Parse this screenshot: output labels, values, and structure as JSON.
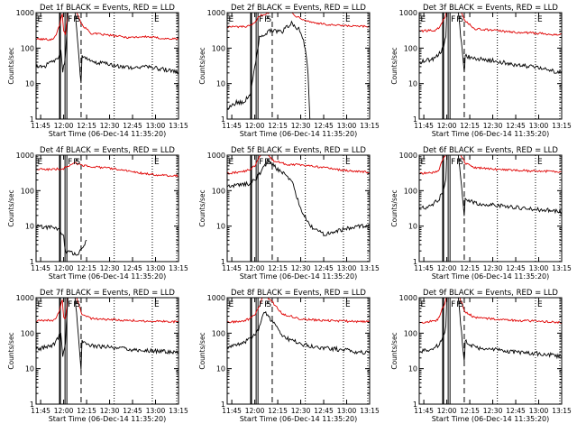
{
  "figure": {
    "ylabel": "Counts/sec",
    "xlabel": "Start Time (06-Dec-14 11:35:20)",
    "xticks": [
      "11:45",
      "12:00",
      "12:15",
      "12:30",
      "12:45",
      "13:00",
      "13:15"
    ],
    "yticks": [
      "1",
      "10",
      "100",
      "1000"
    ],
    "marker_labels": [
      "E",
      "F",
      "P",
      "S"
    ],
    "colors": {
      "events": "#000000",
      "lld": "#e00000",
      "axes": "#000000"
    }
  },
  "chart_data": [
    {
      "type": "line",
      "title": "Det 1f BLACK = Events, RED = LLD",
      "xlim": [
        11.7,
        13.25
      ],
      "ylim": [
        1,
        1000
      ],
      "yscale": "log",
      "lld": [
        [
          11.7,
          180
        ],
        [
          11.88,
          175
        ],
        [
          11.92,
          250
        ],
        [
          11.955,
          420
        ],
        [
          11.97,
          700
        ],
        [
          11.985,
          900
        ],
        [
          12.0,
          300
        ],
        [
          12.02,
          250
        ],
        [
          12.05,
          1300
        ],
        [
          12.12,
          1400
        ],
        [
          12.2,
          450
        ],
        [
          12.3,
          260
        ],
        [
          12.5,
          230
        ],
        [
          12.7,
          200
        ],
        [
          12.9,
          210
        ],
        [
          13.1,
          185
        ],
        [
          13.25,
          180
        ]
      ],
      "events": [
        [
          11.7,
          30
        ],
        [
          11.8,
          32
        ],
        [
          11.88,
          40
        ],
        [
          11.92,
          50
        ],
        [
          11.95,
          60
        ],
        [
          11.97,
          90
        ],
        [
          11.99,
          20
        ],
        [
          12.02,
          60
        ],
        [
          12.05,
          1300
        ],
        [
          12.12,
          1400
        ],
        [
          12.19,
          10
        ],
        [
          12.2,
          60
        ],
        [
          12.3,
          40
        ],
        [
          12.5,
          35
        ],
        [
          12.7,
          28
        ],
        [
          12.9,
          30
        ],
        [
          13.1,
          25
        ],
        [
          13.25,
          20
        ]
      ]
    },
    {
      "type": "line",
      "title": "Det 2f BLACK = Events, RED = LLD",
      "xlim": [
        11.7,
        13.25
      ],
      "ylim": [
        1,
        1000
      ],
      "yscale": "log",
      "lld": [
        [
          11.7,
          400
        ],
        [
          11.9,
          400
        ],
        [
          11.95,
          420
        ],
        [
          12.0,
          500
        ],
        [
          12.05,
          800
        ],
        [
          12.15,
          1000
        ],
        [
          12.25,
          1200
        ],
        [
          12.35,
          1300
        ],
        [
          12.45,
          800
        ],
        [
          12.6,
          550
        ],
        [
          12.8,
          450
        ],
        [
          13.0,
          420
        ],
        [
          13.25,
          400
        ]
      ],
      "events": [
        [
          11.7,
          2
        ],
        [
          11.8,
          3
        ],
        [
          11.88,
          3
        ],
        [
          11.95,
          5
        ],
        [
          12.0,
          30
        ],
        [
          12.05,
          200
        ],
        [
          12.15,
          300
        ],
        [
          12.3,
          300
        ],
        [
          12.4,
          500
        ],
        [
          12.45,
          400
        ],
        [
          12.5,
          300
        ],
        [
          12.55,
          100
        ],
        [
          12.58,
          20
        ],
        [
          12.6,
          1
        ]
      ]
    },
    {
      "type": "line",
      "title": "Det 3f BLACK = Events, RED = LLD",
      "xlim": [
        11.7,
        13.25
      ],
      "ylim": [
        1,
        1000
      ],
      "yscale": "log",
      "lld": [
        [
          11.7,
          300
        ],
        [
          11.88,
          320
        ],
        [
          11.92,
          380
        ],
        [
          11.95,
          550
        ],
        [
          11.98,
          700
        ],
        [
          12.0,
          1300
        ],
        [
          12.12,
          1500
        ],
        [
          12.2,
          600
        ],
        [
          12.3,
          350
        ],
        [
          12.5,
          320
        ],
        [
          12.7,
          280
        ],
        [
          12.9,
          270
        ],
        [
          13.1,
          250
        ],
        [
          13.25,
          240
        ]
      ],
      "events": [
        [
          11.7,
          40
        ],
        [
          11.85,
          50
        ],
        [
          11.92,
          70
        ],
        [
          11.96,
          100
        ],
        [
          11.99,
          200
        ],
        [
          12.0,
          1300
        ],
        [
          12.12,
          1500
        ],
        [
          12.19,
          20
        ],
        [
          12.2,
          60
        ],
        [
          12.3,
          50
        ],
        [
          12.5,
          45
        ],
        [
          12.7,
          35
        ],
        [
          12.9,
          30
        ],
        [
          13.1,
          25
        ],
        [
          13.25,
          20
        ]
      ]
    },
    {
      "type": "line",
      "title": "Det 4f BLACK = Events, RED = LLD",
      "xlim": [
        11.7,
        13.25
      ],
      "ylim": [
        1,
        1000
      ],
      "yscale": "log",
      "lld": [
        [
          11.7,
          400
        ],
        [
          11.9,
          400
        ],
        [
          12.0,
          420
        ],
        [
          12.05,
          500
        ],
        [
          12.12,
          600
        ],
        [
          12.2,
          520
        ],
        [
          12.4,
          450
        ],
        [
          12.6,
          400
        ],
        [
          12.8,
          320
        ],
        [
          13.0,
          280
        ],
        [
          13.25,
          260
        ]
      ],
      "events": [
        [
          11.7,
          10
        ],
        [
          11.8,
          9
        ],
        [
          11.88,
          10
        ],
        [
          11.95,
          8
        ],
        [
          12.0,
          5
        ],
        [
          12.02,
          2
        ],
        [
          12.15,
          1.5
        ],
        [
          12.22,
          3
        ],
        [
          12.25,
          4
        ]
      ]
    },
    {
      "type": "line",
      "title": "Det 5f BLACK = Events, RED = LLD",
      "xlim": [
        11.7,
        13.25
      ],
      "ylim": [
        1,
        1000
      ],
      "yscale": "log",
      "lld": [
        [
          11.7,
          300
        ],
        [
          11.88,
          350
        ],
        [
          11.95,
          400
        ],
        [
          12.0,
          500
        ],
        [
          12.05,
          900
        ],
        [
          12.1,
          1500
        ],
        [
          12.2,
          700
        ],
        [
          12.35,
          550
        ],
        [
          12.55,
          520
        ],
        [
          12.75,
          450
        ],
        [
          12.95,
          380
        ],
        [
          13.15,
          340
        ],
        [
          13.25,
          330
        ]
      ],
      "events": [
        [
          11.7,
          130
        ],
        [
          11.85,
          150
        ],
        [
          11.95,
          160
        ],
        [
          12.0,
          200
        ],
        [
          12.05,
          300
        ],
        [
          12.15,
          700
        ],
        [
          12.25,
          400
        ],
        [
          12.4,
          200
        ],
        [
          12.5,
          30
        ],
        [
          12.6,
          10
        ],
        [
          12.75,
          6
        ],
        [
          12.95,
          8
        ],
        [
          13.15,
          10
        ],
        [
          13.25,
          11
        ]
      ]
    },
    {
      "type": "line",
      "title": "Det 6f BLACK = Events, RED = LLD",
      "xlim": [
        11.7,
        13.25
      ],
      "ylim": [
        1,
        1000
      ],
      "yscale": "log",
      "lld": [
        [
          11.7,
          300
        ],
        [
          11.88,
          330
        ],
        [
          11.92,
          400
        ],
        [
          11.95,
          700
        ],
        [
          11.98,
          900
        ],
        [
          12.0,
          1300
        ],
        [
          12.12,
          1500
        ],
        [
          12.2,
          600
        ],
        [
          12.3,
          450
        ],
        [
          12.5,
          400
        ],
        [
          12.7,
          380
        ],
        [
          12.9,
          360
        ],
        [
          13.1,
          350
        ],
        [
          13.25,
          340
        ]
      ],
      "events": [
        [
          11.7,
          30
        ],
        [
          11.85,
          40
        ],
        [
          11.92,
          60
        ],
        [
          11.96,
          100
        ],
        [
          11.99,
          200
        ],
        [
          12.0,
          1300
        ],
        [
          12.12,
          1500
        ],
        [
          12.19,
          20
        ],
        [
          12.2,
          60
        ],
        [
          12.3,
          45
        ],
        [
          12.5,
          40
        ],
        [
          12.7,
          35
        ],
        [
          12.9,
          30
        ],
        [
          13.1,
          28
        ],
        [
          13.25,
          25
        ]
      ]
    },
    {
      "type": "line",
      "title": "Det 7f BLACK = Events, RED = LLD",
      "xlim": [
        11.7,
        13.25
      ],
      "ylim": [
        1,
        1000
      ],
      "yscale": "log",
      "lld": [
        [
          11.7,
          220
        ],
        [
          11.88,
          230
        ],
        [
          11.92,
          280
        ],
        [
          11.955,
          420
        ],
        [
          11.97,
          650
        ],
        [
          11.985,
          900
        ],
        [
          12.0,
          300
        ],
        [
          12.02,
          250
        ],
        [
          12.05,
          1300
        ],
        [
          12.12,
          1400
        ],
        [
          12.2,
          350
        ],
        [
          12.3,
          260
        ],
        [
          12.5,
          240
        ],
        [
          12.7,
          230
        ],
        [
          12.9,
          220
        ],
        [
          13.1,
          215
        ],
        [
          13.25,
          210
        ]
      ],
      "events": [
        [
          11.7,
          35
        ],
        [
          11.8,
          40
        ],
        [
          11.88,
          45
        ],
        [
          11.92,
          60
        ],
        [
          11.95,
          80
        ],
        [
          11.97,
          100
        ],
        [
          11.99,
          20
        ],
        [
          12.02,
          60
        ],
        [
          12.05,
          1300
        ],
        [
          12.12,
          1400
        ],
        [
          12.19,
          10
        ],
        [
          12.2,
          60
        ],
        [
          12.3,
          45
        ],
        [
          12.5,
          40
        ],
        [
          12.7,
          35
        ],
        [
          12.9,
          32
        ],
        [
          13.1,
          30
        ],
        [
          13.25,
          28
        ]
      ]
    },
    {
      "type": "line",
      "title": "Det 8f BLACK = Events, RED = LLD",
      "xlim": [
        11.7,
        13.25
      ],
      "ylim": [
        1,
        1000
      ],
      "yscale": "log",
      "lld": [
        [
          11.7,
          200
        ],
        [
          11.88,
          220
        ],
        [
          11.95,
          260
        ],
        [
          12.0,
          320
        ],
        [
          12.05,
          600
        ],
        [
          12.1,
          1300
        ],
        [
          12.2,
          700
        ],
        [
          12.3,
          350
        ],
        [
          12.5,
          250
        ],
        [
          12.7,
          230
        ],
        [
          12.9,
          220
        ],
        [
          13.1,
          215
        ],
        [
          13.25,
          210
        ]
      ],
      "events": [
        [
          11.7,
          40
        ],
        [
          11.85,
          50
        ],
        [
          11.95,
          70
        ],
        [
          12.0,
          90
        ],
        [
          12.05,
          150
        ],
        [
          12.1,
          400
        ],
        [
          12.2,
          200
        ],
        [
          12.3,
          80
        ],
        [
          12.5,
          50
        ],
        [
          12.7,
          40
        ],
        [
          12.9,
          35
        ],
        [
          13.1,
          30
        ],
        [
          13.25,
          28
        ]
      ]
    },
    {
      "type": "line",
      "title": "Det 9f BLACK = Events, RED = LLD",
      "xlim": [
        11.7,
        13.25
      ],
      "ylim": [
        1,
        1000
      ],
      "yscale": "log",
      "lld": [
        [
          11.7,
          200
        ],
        [
          11.88,
          220
        ],
        [
          11.92,
          280
        ],
        [
          11.95,
          500
        ],
        [
          11.98,
          700
        ],
        [
          12.0,
          1300
        ],
        [
          12.12,
          1400
        ],
        [
          12.2,
          400
        ],
        [
          12.3,
          280
        ],
        [
          12.5,
          250
        ],
        [
          12.7,
          230
        ],
        [
          12.9,
          220
        ],
        [
          13.1,
          210
        ],
        [
          13.25,
          200
        ]
      ],
      "events": [
        [
          11.7,
          30
        ],
        [
          11.85,
          35
        ],
        [
          11.92,
          50
        ],
        [
          11.96,
          80
        ],
        [
          11.99,
          150
        ],
        [
          12.0,
          1300
        ],
        [
          12.12,
          1400
        ],
        [
          12.19,
          15
        ],
        [
          12.2,
          60
        ],
        [
          12.3,
          40
        ],
        [
          12.5,
          35
        ],
        [
          12.7,
          30
        ],
        [
          12.9,
          28
        ],
        [
          13.1,
          25
        ],
        [
          13.25,
          22
        ]
      ]
    }
  ]
}
